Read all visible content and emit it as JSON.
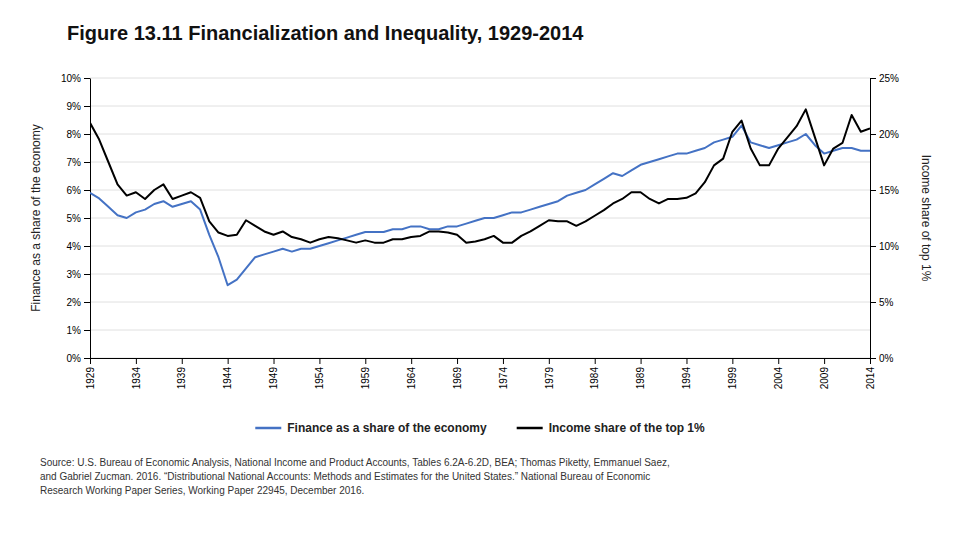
{
  "chart_data": {
    "type": "line",
    "title": "Figure 13.11 Financialization and Inequality, 1929-2014",
    "ylabel": "Finance as a share of the economy",
    "y2label": "Income share of top 1%",
    "x": [
      1929,
      1930,
      1931,
      1932,
      1933,
      1934,
      1935,
      1936,
      1937,
      1938,
      1939,
      1940,
      1941,
      1942,
      1943,
      1944,
      1945,
      1946,
      1947,
      1948,
      1949,
      1950,
      1951,
      1952,
      1953,
      1954,
      1955,
      1956,
      1957,
      1958,
      1959,
      1960,
      1961,
      1962,
      1963,
      1964,
      1965,
      1966,
      1967,
      1968,
      1969,
      1970,
      1971,
      1972,
      1973,
      1974,
      1975,
      1976,
      1977,
      1978,
      1979,
      1980,
      1981,
      1982,
      1983,
      1984,
      1985,
      1986,
      1987,
      1988,
      1989,
      1990,
      1991,
      1992,
      1993,
      1994,
      1995,
      1996,
      1997,
      1998,
      1999,
      2000,
      2001,
      2002,
      2003,
      2004,
      2005,
      2006,
      2007,
      2008,
      2009,
      2010,
      2011,
      2012,
      2013,
      2014
    ],
    "series": [
      {
        "name": "Finance as a share of the economy",
        "color": "#4472C4",
        "axis": "y",
        "values": [
          5.9,
          5.7,
          5.4,
          5.1,
          5.0,
          5.2,
          5.3,
          5.5,
          5.6,
          5.4,
          5.5,
          5.6,
          5.3,
          4.4,
          3.6,
          2.6,
          2.8,
          3.2,
          3.6,
          3.7,
          3.8,
          3.9,
          3.8,
          3.9,
          3.9,
          4.0,
          4.1,
          4.2,
          4.3,
          4.4,
          4.5,
          4.5,
          4.5,
          4.6,
          4.6,
          4.7,
          4.7,
          4.6,
          4.6,
          4.7,
          4.7,
          4.8,
          4.9,
          5.0,
          5.0,
          5.1,
          5.2,
          5.2,
          5.3,
          5.4,
          5.5,
          5.6,
          5.8,
          5.9,
          6.0,
          6.2,
          6.4,
          6.6,
          6.5,
          6.7,
          6.9,
          7.0,
          7.1,
          7.2,
          7.3,
          7.3,
          7.4,
          7.5,
          7.7,
          7.8,
          7.9,
          8.3,
          7.7,
          7.6,
          7.5,
          7.6,
          7.7,
          7.8,
          8.0,
          7.6,
          7.3,
          7.4,
          7.5,
          7.5,
          7.4,
          7.4
        ]
      },
      {
        "name": "Income share of the top 1%",
        "color": "#000000",
        "axis": "y2",
        "values": [
          21.0,
          19.5,
          17.5,
          15.5,
          14.5,
          14.8,
          14.2,
          15.0,
          15.5,
          14.2,
          14.5,
          14.8,
          14.3,
          12.2,
          11.2,
          10.9,
          11.0,
          12.3,
          11.8,
          11.3,
          11.0,
          11.3,
          10.8,
          10.6,
          10.3,
          10.6,
          10.8,
          10.7,
          10.5,
          10.3,
          10.5,
          10.3,
          10.3,
          10.6,
          10.6,
          10.8,
          10.9,
          11.3,
          11.3,
          11.2,
          11.0,
          10.3,
          10.4,
          10.6,
          10.9,
          10.3,
          10.3,
          10.9,
          11.3,
          11.8,
          12.3,
          12.2,
          12.2,
          11.8,
          12.2,
          12.7,
          13.2,
          13.8,
          14.2,
          14.8,
          14.8,
          14.2,
          13.8,
          14.2,
          14.2,
          14.3,
          14.7,
          15.7,
          17.2,
          17.8,
          20.2,
          21.2,
          18.7,
          17.2,
          17.2,
          18.7,
          19.7,
          20.7,
          22.2,
          19.7,
          17.2,
          18.7,
          19.2,
          21.7,
          20.2,
          20.5
        ]
      }
    ],
    "xlim": [
      1929,
      2014
    ],
    "xticks": [
      1929,
      1934,
      1939,
      1944,
      1949,
      1954,
      1959,
      1964,
      1969,
      1974,
      1979,
      1984,
      1989,
      1994,
      1999,
      2004,
      2009,
      2014
    ],
    "ylim": [
      0,
      10
    ],
    "yticks": [
      {
        "value": 0,
        "label": "0%"
      },
      {
        "value": 1,
        "label": "1%"
      },
      {
        "value": 2,
        "label": "2%"
      },
      {
        "value": 3,
        "label": "3%"
      },
      {
        "value": 4,
        "label": "4%"
      },
      {
        "value": 5,
        "label": "5%"
      },
      {
        "value": 6,
        "label": "6%"
      },
      {
        "value": 7,
        "label": "7%"
      },
      {
        "value": 8,
        "label": "8%"
      },
      {
        "value": 9,
        "label": "9%"
      },
      {
        "value": 10,
        "label": "10%"
      }
    ],
    "y2lim": [
      0,
      25
    ],
    "y2ticks": [
      {
        "value": 0,
        "label": "0%"
      },
      {
        "value": 5,
        "label": "5%"
      },
      {
        "value": 10,
        "label": "10%"
      },
      {
        "value": 15,
        "label": "15%"
      },
      {
        "value": 20,
        "label": "20%"
      },
      {
        "value": 25,
        "label": "25%"
      }
    ],
    "grid": true,
    "legend": "bottom",
    "annotations": [
      "Source: U.S. Bureau of Economic Analysis, National Income and Product Accounts, Tables 6.2A-6.2D, BEA; Thomas Piketty, Emmanuel Saez,",
      "and Gabriel Zucman. 2016. “Distributional National Accounts: Methods and Estimates for the United States.” National Bureau of Economic",
      "Research Working Paper Series, Working Paper 22945, December 2016."
    ]
  }
}
